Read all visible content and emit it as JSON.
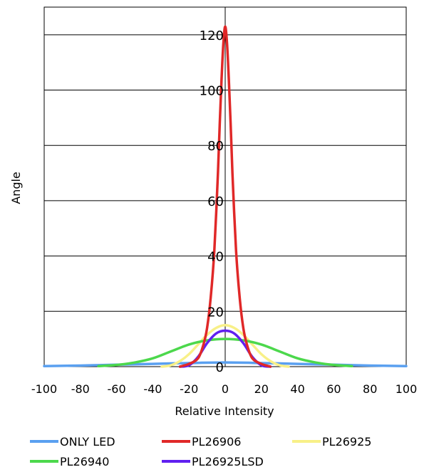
{
  "chart_data": {
    "type": "line",
    "title": "",
    "xlabel": "Relative Intensity",
    "ylabel": "Angle",
    "xlim": [
      -100,
      100
    ],
    "ylim": [
      0,
      130
    ],
    "x_ticks": [
      -100,
      -80,
      -60,
      -40,
      -20,
      0,
      20,
      40,
      60,
      80,
      100
    ],
    "y_ticks": [
      0,
      20,
      40,
      60,
      80,
      100,
      120
    ],
    "grid": "horizontal",
    "legend_position": "bottom",
    "series": [
      {
        "name": "ONLY LED",
        "color": "#5aa0f0",
        "x": [
          -100,
          -80,
          -60,
          -40,
          -20,
          0,
          20,
          40,
          60,
          80,
          100
        ],
        "y": [
          0.2,
          0.4,
          0.7,
          1.0,
          1.3,
          1.5,
          1.3,
          1.0,
          0.7,
          0.4,
          0.2
        ]
      },
      {
        "name": "PL26906",
        "color": "#e02828",
        "x": [
          -25,
          -20,
          -15,
          -12,
          -10,
          -8,
          -6,
          -4,
          -3,
          -2,
          -1,
          0,
          1,
          2,
          3,
          4,
          6,
          8,
          10,
          12,
          15,
          20,
          25
        ],
        "y": [
          0,
          1,
          3,
          8,
          14,
          25,
          42,
          70,
          88,
          104,
          117,
          123,
          117,
          104,
          88,
          70,
          42,
          25,
          14,
          8,
          3,
          1,
          0
        ]
      },
      {
        "name": "PL26925",
        "color": "#f8f088",
        "x": [
          -35,
          -30,
          -25,
          -20,
          -15,
          -10,
          -5,
          0,
          5,
          10,
          15,
          20,
          25,
          30,
          35
        ],
        "y": [
          0,
          0.5,
          2,
          4.5,
          8,
          11.5,
          14,
          15,
          14,
          11.5,
          8,
          4.5,
          2,
          0.5,
          0
        ]
      },
      {
        "name": "PL26940",
        "color": "#4cd84c",
        "x": [
          -70,
          -60,
          -50,
          -40,
          -30,
          -20,
          -10,
          0,
          10,
          20,
          30,
          40,
          50,
          60,
          70
        ],
        "y": [
          0.2,
          0.6,
          1.5,
          3,
          5.5,
          8,
          9.5,
          10,
          9.5,
          8,
          5.5,
          3,
          1.5,
          0.6,
          0.2
        ]
      },
      {
        "name": "PL26925LSD",
        "color": "#6020f0",
        "x": [
          -25,
          -20,
          -15,
          -10,
          -5,
          0,
          5,
          10,
          15,
          20,
          25
        ],
        "y": [
          0,
          0.5,
          3.5,
          8.5,
          12,
          13,
          12,
          8.5,
          3.5,
          0.5,
          0
        ]
      }
    ]
  }
}
